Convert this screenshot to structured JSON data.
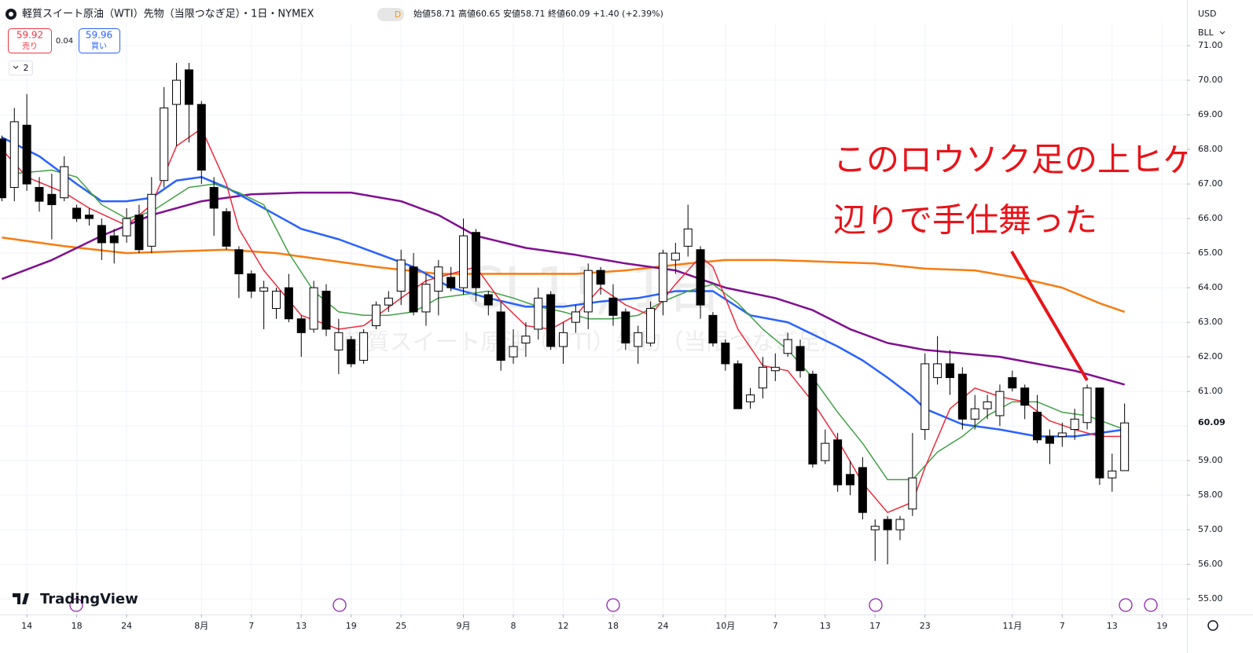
{
  "chart_data": {
    "type": "candlestick",
    "title": "軽質スイート原油（WTI）先物（当限つなぎ足）・1日・NYMEX",
    "interval_badge": "D",
    "ohlc_text": "始値58.71 高値60.65 安値58.71 終値60.09 +1.40 (+2.39%)",
    "bid": {
      "price": "59.92",
      "label": "売り"
    },
    "spread": "0.04",
    "ask": {
      "price": "59.96",
      "label": "買い"
    },
    "indicator_count": "2",
    "currency": "USD",
    "unit": "BLL",
    "watermark": {
      "symbol": "CL1!, 1日",
      "name": "軽質スイート原油（WTI）先物（当限つなぎ足）"
    },
    "logo": "TradingView",
    "annotation": {
      "lines": [
        "このロウソク足の上ヒゲ",
        "辺りで手仕舞った"
      ],
      "color": "#e8141a"
    },
    "last_price": {
      "value": 60.09,
      "label": "60.09"
    },
    "up_color": "#ffffff",
    "down_color": "#000000",
    "ylim": [
      54.55,
      72.32
    ],
    "yticks": [
      {
        "value": 55,
        "label": "55.00"
      },
      {
        "value": 56,
        "label": "56.00"
      },
      {
        "value": 57,
        "label": "57.00"
      },
      {
        "value": 58,
        "label": "58.00"
      },
      {
        "value": 59,
        "label": "59.00"
      },
      {
        "value": 60,
        "label": "60.00"
      },
      {
        "value": 61,
        "label": "61.00"
      },
      {
        "value": 62,
        "label": "62.00"
      },
      {
        "value": 63,
        "label": "63.00"
      },
      {
        "value": 64,
        "label": "64.00"
      },
      {
        "value": 65,
        "label": "65.00"
      },
      {
        "value": 66,
        "label": "66.00"
      },
      {
        "value": 67,
        "label": "67.00"
      },
      {
        "value": 68,
        "label": "68.00"
      },
      {
        "value": 69,
        "label": "69.00"
      },
      {
        "value": 70,
        "label": "70.00"
      },
      {
        "value": 71,
        "label": "71.00"
      }
    ],
    "xlim": [
      -0.15,
      95
    ],
    "xticks": [
      {
        "value": 2,
        "label": "14"
      },
      {
        "value": 6,
        "label": "18"
      },
      {
        "value": 10,
        "label": "24"
      },
      {
        "value": 16,
        "label": "8月"
      },
      {
        "value": 20,
        "label": "7"
      },
      {
        "value": 24,
        "label": "13"
      },
      {
        "value": 28,
        "label": "19"
      },
      {
        "value": 32,
        "label": "25"
      },
      {
        "value": 37,
        "label": "9月"
      },
      {
        "value": 41,
        "label": "8"
      },
      {
        "value": 45,
        "label": "12"
      },
      {
        "value": 49,
        "label": "18"
      },
      {
        "value": 53,
        "label": "24"
      },
      {
        "value": 58,
        "label": "10月"
      },
      {
        "value": 62,
        "label": "7"
      },
      {
        "value": 66,
        "label": "13"
      },
      {
        "value": 70,
        "label": "17"
      },
      {
        "value": 74,
        "label": "23"
      },
      {
        "value": 81,
        "label": "11月"
      },
      {
        "value": 85,
        "label": "7"
      },
      {
        "value": 89,
        "label": "13"
      },
      {
        "value": 93,
        "label": "19"
      }
    ],
    "grid": true,
    "open": [
      68.3,
      66.9,
      68.7,
      66.9,
      66.7,
      66.6,
      66.3,
      66.1,
      65.8,
      65.5,
      65.5,
      66.1,
      65.2,
      67.1,
      69.3,
      70.3,
      69.3,
      66.9,
      66.2,
      65.1,
      64.4,
      63.9,
      63.4,
      64.0,
      63.1,
      62.8,
      63.9,
      62.2,
      62.5,
      61.9,
      62.9,
      63.5,
      63.9,
      64.6,
      63.3,
      63.9,
      64.3,
      64.0,
      65.6,
      63.8,
      63.3,
      62.0,
      62.4,
      62.8,
      63.8,
      62.3,
      63.0,
      63.3,
      64.5,
      63.7,
      63.3,
      62.3,
      62.4,
      63.6,
      64.8,
      65.2,
      65.1,
      63.2,
      62.4,
      61.8,
      60.7,
      61.1,
      61.6,
      62.1,
      62.3,
      61.5,
      59.0,
      59.6,
      58.6,
      58.8,
      57.0,
      57.3,
      57.0,
      57.6,
      59.9,
      61.4,
      61.8,
      61.5,
      60.2,
      60.5,
      60.3,
      61.4,
      61.1,
      60.4,
      59.7,
      59.7,
      59.9,
      60.1,
      61.1,
      58.5,
      58.71
    ],
    "high": [
      68.4,
      69.2,
      69.6,
      67.2,
      67.3,
      67.8,
      66.4,
      66.3,
      66.0,
      65.7,
      66.3,
      66.4,
      67.2,
      69.8,
      70.5,
      70.5,
      69.4,
      67.2,
      66.3,
      65.2,
      64.5,
      64.2,
      64.0,
      64.4,
      63.2,
      64.2,
      64.1,
      63.1,
      62.6,
      62.8,
      63.6,
      63.9,
      65.1,
      65.0,
      64.4,
      64.8,
      64.6,
      66.0,
      65.7,
      63.9,
      63.6,
      62.8,
      63.0,
      64.0,
      63.9,
      63.0,
      63.5,
      64.7,
      64.6,
      64.1,
      63.4,
      62.9,
      63.6,
      65.1,
      65.3,
      66.4,
      65.2,
      63.3,
      62.5,
      61.9,
      61.1,
      62.0,
      62.1,
      62.7,
      62.5,
      61.6,
      59.9,
      59.8,
      59.0,
      59.1,
      57.3,
      57.4,
      57.4,
      59.8,
      62.1,
      62.6,
      62.2,
      61.7,
      60.9,
      60.9,
      61.2,
      61.6,
      61.2,
      60.9,
      59.9,
      60.1,
      60.5,
      61.2,
      61.1,
      59.2,
      60.65
    ],
    "low": [
      66.5,
      66.5,
      66.8,
      66.2,
      65.4,
      66.5,
      65.9,
      65.8,
      64.8,
      64.7,
      65.3,
      65.0,
      65.0,
      66.9,
      68.1,
      68.2,
      67.0,
      65.5,
      65.1,
      63.7,
      63.7,
      62.8,
      63.1,
      63.0,
      62.0,
      62.7,
      62.6,
      61.5,
      61.7,
      61.8,
      62.8,
      63.3,
      63.5,
      63.2,
      62.9,
      63.2,
      63.9,
      63.8,
      63.6,
      63.2,
      61.6,
      61.8,
      62.0,
      62.5,
      62.2,
      61.8,
      62.7,
      62.8,
      63.8,
      62.9,
      62.2,
      61.8,
      62.3,
      63.2,
      64.4,
      64.9,
      63.1,
      62.3,
      61.6,
      60.5,
      60.5,
      60.8,
      61.3,
      62.0,
      61.4,
      58.8,
      58.9,
      58.1,
      58.0,
      57.3,
      56.1,
      56.0,
      56.7,
      57.4,
      59.6,
      61.2,
      60.9,
      59.9,
      59.9,
      60.2,
      60.0,
      61.0,
      60.2,
      59.5,
      58.9,
      59.4,
      59.6,
      59.9,
      58.3,
      58.1,
      58.71
    ],
    "close": [
      66.6,
      68.8,
      67.0,
      66.5,
      66.4,
      67.5,
      66.0,
      66.0,
      65.3,
      65.3,
      66.0,
      65.1,
      66.7,
      69.2,
      70.0,
      69.3,
      67.4,
      66.3,
      65.2,
      64.4,
      63.9,
      64.0,
      63.9,
      63.1,
      62.7,
      64.0,
      62.8,
      62.7,
      61.8,
      62.7,
      63.5,
      63.7,
      64.8,
      63.3,
      64.1,
      64.6,
      64.0,
      65.5,
      64.0,
      63.5,
      61.9,
      62.3,
      62.6,
      63.7,
      62.3,
      62.7,
      63.3,
      64.5,
      64.1,
      63.2,
      62.4,
      62.7,
      63.4,
      65.0,
      65.0,
      65.7,
      63.5,
      62.4,
      61.8,
      60.5,
      60.9,
      61.7,
      61.7,
      62.5,
      61.6,
      58.9,
      59.5,
      58.3,
      58.3,
      57.5,
      57.1,
      57.0,
      57.3,
      58.5,
      61.8,
      61.8,
      61.4,
      60.2,
      60.5,
      60.7,
      61.0,
      61.1,
      60.6,
      59.6,
      59.5,
      59.8,
      60.2,
      61.1,
      58.5,
      58.7,
      60.09
    ],
    "lines": [
      {
        "color": "#f77c12",
        "x": [
          0,
          5,
          10,
          14,
          18,
          22,
          26,
          30,
          35,
          40,
          46,
          50,
          55,
          58,
          62,
          66,
          70,
          74,
          78,
          82,
          85,
          88,
          90
        ],
        "values": [
          65.45,
          65.2,
          65.0,
          65.05,
          65.1,
          65.0,
          64.8,
          64.6,
          64.4,
          64.4,
          64.4,
          64.5,
          64.7,
          64.8,
          64.8,
          64.75,
          64.7,
          64.55,
          64.5,
          64.25,
          64.0,
          63.55,
          63.3
        ]
      },
      {
        "color": "#800f8f",
        "x": [
          0,
          4,
          8,
          12,
          16,
          20,
          24,
          28,
          32,
          35,
          38,
          42,
          46,
          50,
          54,
          58,
          62,
          65,
          68,
          71,
          74,
          77,
          80,
          83,
          86,
          88,
          90
        ],
        "values": [
          64.25,
          64.8,
          65.5,
          66.1,
          66.5,
          66.7,
          66.75,
          66.75,
          66.5,
          66.1,
          65.5,
          65.15,
          64.95,
          64.7,
          64.5,
          64.0,
          63.7,
          63.35,
          62.8,
          62.4,
          62.2,
          62.1,
          62.0,
          61.8,
          61.6,
          61.4,
          61.2
        ]
      },
      {
        "color": "#2962ff",
        "x": [
          0,
          3,
          6,
          8,
          10,
          12,
          14,
          16,
          18,
          20,
          22,
          24,
          27,
          30,
          33,
          36,
          39,
          42,
          45,
          48,
          51,
          54,
          57,
          60,
          63,
          65,
          67,
          69,
          71,
          73,
          74,
          77,
          80,
          83,
          86,
          88,
          90
        ],
        "values": [
          68.35,
          67.8,
          67.0,
          66.5,
          66.5,
          66.6,
          67.1,
          67.2,
          66.9,
          66.5,
          66.1,
          65.7,
          65.4,
          65.0,
          64.6,
          64.0,
          63.7,
          63.45,
          63.45,
          63.6,
          63.7,
          63.9,
          63.9,
          63.2,
          63.0,
          62.65,
          62.3,
          61.9,
          61.4,
          60.85,
          60.5,
          60.05,
          59.9,
          59.7,
          59.7,
          59.8,
          59.9
        ]
      },
      {
        "color": "#43a047",
        "x": [
          1,
          4,
          6,
          8,
          10,
          12,
          15,
          17,
          19,
          21,
          23,
          25,
          27,
          29,
          31,
          33,
          35,
          37,
          39,
          41,
          43,
          45,
          47,
          49,
          51,
          53,
          55,
          57,
          59,
          61,
          63,
          65,
          67,
          69,
          71,
          73,
          75,
          77,
          79,
          81,
          83,
          85,
          87,
          90
        ],
        "values": [
          67.3,
          67.4,
          67.2,
          66.4,
          66.0,
          66.2,
          66.9,
          67.0,
          66.75,
          66.4,
          65.0,
          63.9,
          63.3,
          63.2,
          63.2,
          63.3,
          63.7,
          63.8,
          63.9,
          63.7,
          63.45,
          63.3,
          63.1,
          63.1,
          63.2,
          63.6,
          63.9,
          64.1,
          63.55,
          62.8,
          62.2,
          61.4,
          60.4,
          59.5,
          58.45,
          58.45,
          59.25,
          59.7,
          60.3,
          60.7,
          60.7,
          60.4,
          60.3,
          59.9
        ]
      },
      {
        "color": "#f0293d",
        "x": [
          0,
          2,
          5,
          7,
          10,
          12,
          14,
          16,
          18,
          19,
          21,
          24,
          27,
          29,
          32,
          34,
          36,
          38,
          40,
          42,
          44,
          46,
          48,
          50,
          52,
          54,
          56,
          57,
          59,
          61,
          63,
          65,
          67,
          69,
          71,
          73,
          74,
          76,
          78,
          80,
          82,
          84,
          86,
          88,
          90
        ],
        "values": [
          68.0,
          67.2,
          66.75,
          66.3,
          65.8,
          66.4,
          68.1,
          68.6,
          67.0,
          65.7,
          64.5,
          63.2,
          62.8,
          62.9,
          63.7,
          64.2,
          64.4,
          64.6,
          63.6,
          62.9,
          62.8,
          63.2,
          64.0,
          63.5,
          63.2,
          64.1,
          64.9,
          64.6,
          62.8,
          61.75,
          61.6,
          60.7,
          59.6,
          58.35,
          57.5,
          57.8,
          58.8,
          60.5,
          61.1,
          60.85,
          60.7,
          60.15,
          59.9,
          59.7,
          59.7
        ]
      }
    ]
  }
}
